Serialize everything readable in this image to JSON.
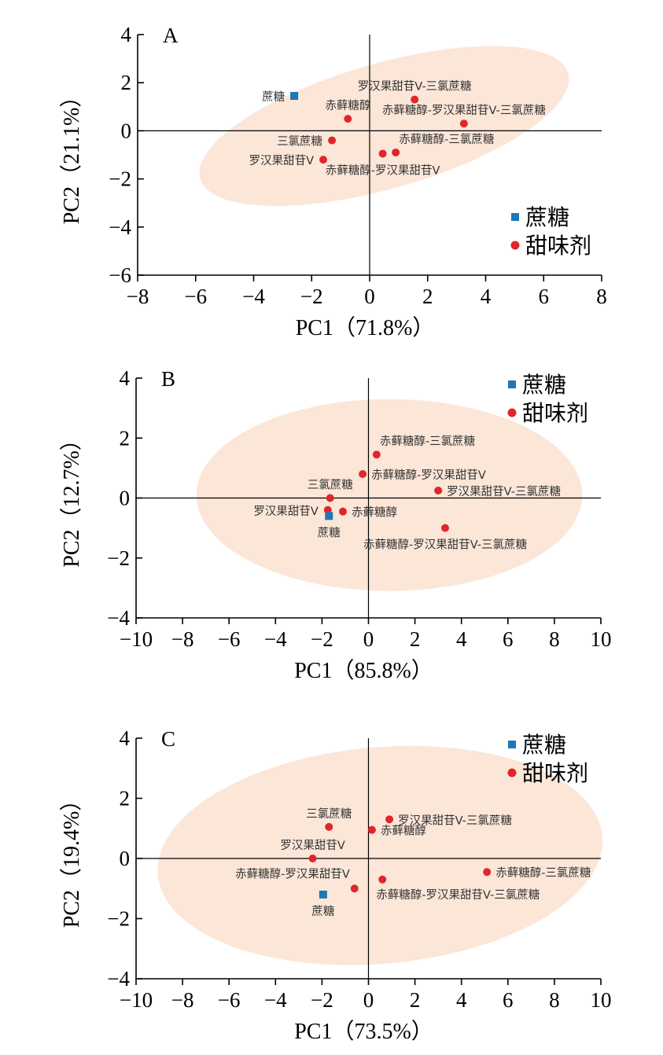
{
  "colors": {
    "ellipse": "#fbe6d8",
    "sucrose": "#1f77b4",
    "sweetener": "#e0262b",
    "axis": "#000000",
    "label": "#333333"
  },
  "chart_data": [
    {
      "type": "scatter",
      "panel_label": "A",
      "xlabel": "PC1（71.8%）",
      "ylabel": "PC2（21.1%）",
      "xlim": [
        -8,
        8
      ],
      "ylim": [
        -6,
        4
      ],
      "xticks": [
        -8,
        -6,
        -4,
        -2,
        0,
        2,
        4,
        6,
        8
      ],
      "yticks": [
        -6,
        -4,
        -2,
        0,
        2,
        4
      ],
      "ellipse": {
        "cx": 0.5,
        "cy": 0.2,
        "rx": 6.6,
        "ry": 2.6,
        "angle_deg": -16
      },
      "legend": {
        "position": "bottom-right",
        "entries": [
          {
            "label": "蔗糖",
            "marker": "square",
            "group": "sucrose"
          },
          {
            "label": "甜味剂",
            "marker": "circle",
            "group": "sweetener"
          }
        ]
      },
      "points": [
        {
          "name": "蔗糖",
          "x": -2.6,
          "y": 1.45,
          "group": "sucrose",
          "label_pos": "left"
        },
        {
          "name": "赤藓糖醇",
          "x": -0.75,
          "y": 0.5,
          "group": "sweetener",
          "label_pos": "top"
        },
        {
          "name": "罗汉果甜苷V-三氯蔗糖",
          "x": 1.55,
          "y": 1.3,
          "group": "sweetener",
          "label_pos": "top"
        },
        {
          "name": "赤藓糖醇-罗汉果甜苷V-三氯蔗糖",
          "x": 3.25,
          "y": 0.3,
          "group": "sweetener",
          "label_pos": "top"
        },
        {
          "name": "三氯蔗糖",
          "x": -1.3,
          "y": -0.4,
          "group": "sweetener",
          "label_pos": "left"
        },
        {
          "name": "赤藓糖醇-三氯蔗糖",
          "x": 0.9,
          "y": -0.9,
          "group": "sweetener",
          "label_pos": "top-right"
        },
        {
          "name": "赤藓糖醇-罗汉果甜苷V",
          "x": 0.45,
          "y": -0.95,
          "group": "sweetener",
          "label_pos": "bottom"
        },
        {
          "name": "罗汉果甜苷V",
          "x": -1.6,
          "y": -1.2,
          "group": "sweetener",
          "label_pos": "left"
        }
      ]
    },
    {
      "type": "scatter",
      "panel_label": "B",
      "xlabel": "PC1（85.8%）",
      "ylabel": "PC2（12.7%）",
      "xlim": [
        -10,
        10
      ],
      "ylim": [
        -4,
        4
      ],
      "xticks": [
        -10,
        -8,
        -6,
        -4,
        -2,
        0,
        2,
        4,
        6,
        8,
        10
      ],
      "yticks": [
        -4,
        -2,
        0,
        2,
        4
      ],
      "ellipse": {
        "cx": 0.9,
        "cy": 0.1,
        "rx": 8.3,
        "ry": 3.2,
        "angle_deg": 0
      },
      "legend": {
        "position": "top-right",
        "entries": [
          {
            "label": "蔗糖",
            "marker": "square",
            "group": "sucrose"
          },
          {
            "label": "甜味剂",
            "marker": "circle",
            "group": "sweetener"
          }
        ]
      },
      "points": [
        {
          "name": "赤藓糖醇-三氯蔗糖",
          "x": 0.35,
          "y": 1.45,
          "group": "sweetener",
          "label_pos": "top-right"
        },
        {
          "name": "赤藓糖醇-罗汉果甜苷V",
          "x": -0.25,
          "y": 0.8,
          "group": "sweetener",
          "label_pos": "right"
        },
        {
          "name": "罗汉果甜苷V-三氯蔗糖",
          "x": 3.0,
          "y": 0.25,
          "group": "sweetener",
          "label_pos": "right"
        },
        {
          "name": "三氯蔗糖",
          "x": -1.65,
          "y": 0.0,
          "group": "sweetener",
          "label_pos": "top"
        },
        {
          "name": "罗汉果甜苷V",
          "x": -1.75,
          "y": -0.4,
          "group": "sweetener",
          "label_pos": "left"
        },
        {
          "name": "赤藓糖醇",
          "x": -1.1,
          "y": -0.45,
          "group": "sweetener",
          "label_pos": "right"
        },
        {
          "name": "蔗糖",
          "x": -1.7,
          "y": -0.6,
          "group": "sucrose",
          "label_pos": "bottom"
        },
        {
          "name": "赤藓糖醇-罗汉果甜苷V-三氯蔗糖",
          "x": 3.3,
          "y": -1.0,
          "group": "sweetener",
          "label_pos": "bottom"
        }
      ]
    },
    {
      "type": "scatter",
      "panel_label": "C",
      "xlabel": "PC1（73.5%）",
      "ylabel": "PC2（19.4%）",
      "xlim": [
        -10,
        10
      ],
      "ylim": [
        -4,
        4
      ],
      "xticks": [
        -10,
        -8,
        -6,
        -4,
        -2,
        0,
        2,
        4,
        6,
        8,
        10
      ],
      "yticks": [
        -4,
        -2,
        0,
        2,
        4
      ],
      "ellipse": {
        "cx": 0.5,
        "cy": 0.1,
        "rx": 9.6,
        "ry": 3.6,
        "angle_deg": -5
      },
      "legend": {
        "position": "top-right",
        "entries": [
          {
            "label": "蔗糖",
            "marker": "square",
            "group": "sucrose"
          },
          {
            "label": "甜味剂",
            "marker": "circle",
            "group": "sweetener"
          }
        ]
      },
      "points": [
        {
          "name": "三氯蔗糖",
          "x": -1.7,
          "y": 1.05,
          "group": "sweetener",
          "label_pos": "top"
        },
        {
          "name": "罗汉果甜苷V-三氯蔗糖",
          "x": 0.9,
          "y": 1.3,
          "group": "sweetener",
          "label_pos": "right"
        },
        {
          "name": "赤藓糖醇",
          "x": 0.15,
          "y": 0.95,
          "group": "sweetener",
          "label_pos": "right"
        },
        {
          "name": "罗汉果甜苷V",
          "x": -2.4,
          "y": 0.0,
          "group": "sweetener",
          "label_pos": "top"
        },
        {
          "name": "赤藓糖醇-三氯蔗糖",
          "x": 5.1,
          "y": -0.45,
          "group": "sweetener",
          "label_pos": "right"
        },
        {
          "name": "赤藓糖醇-罗汉果甜苷V",
          "x": -0.6,
          "y": -1.0,
          "group": "sweetener",
          "label_pos": "top-left"
        },
        {
          "name": "赤藓糖醇-罗汉果甜苷V-三氯蔗糖",
          "x": 0.6,
          "y": -0.7,
          "group": "sweetener",
          "label_pos": "bottom-right"
        },
        {
          "name": "蔗糖",
          "x": -1.95,
          "y": -1.2,
          "group": "sucrose",
          "label_pos": "bottom"
        }
      ]
    }
  ]
}
